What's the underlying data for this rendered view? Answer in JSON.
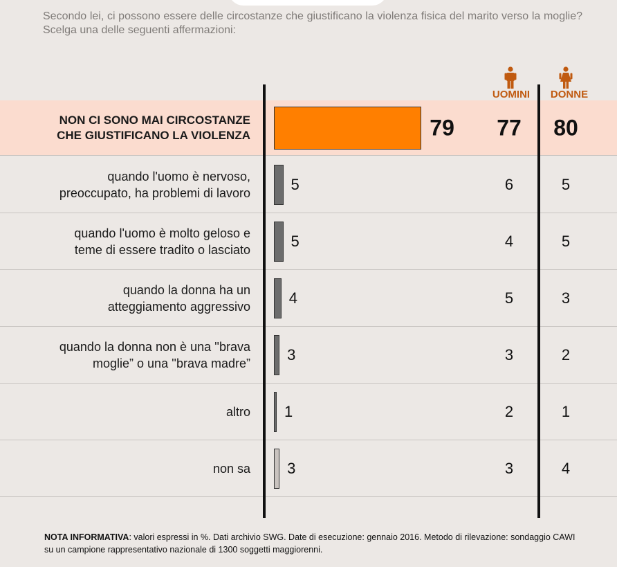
{
  "question": "Secondo lei, ci possono essere delle circostanze che giustificano la violenza fisica del marito verso la moglie? Scelga una delle seguenti affermazioni:",
  "columns": {
    "men": "UOMINI",
    "women": "DONNE"
  },
  "icons": {
    "men": "man-icon",
    "women": "woman-icon"
  },
  "colors": {
    "highlight_bar": "#ff7f00",
    "bar": "#6c6c6c",
    "bar_light": "#c9c3bf",
    "highlight_row": "#fbdccf",
    "header_text": "#c05a10"
  },
  "chart_data": {
    "type": "bar",
    "orientation": "horizontal",
    "unit": "%",
    "categories": [
      "NON CI SONO MAI CIRCOSTANZE CHE GIUSTIFICANO LA VIOLENZA",
      "quando l'uomo è nervoso, preoccupato, ha problemi di lavoro",
      "quando l'uomo è molto geloso e teme di essere tradito o lasciato",
      "quando la donna ha un atteggiamento aggressivo",
      "quando la donna non è una ''brava moglie” o una ''brava madre”",
      "altro",
      "non sa"
    ],
    "series": [
      {
        "name": "",
        "values": [
          79,
          5,
          5,
          4,
          3,
          1,
          3
        ]
      },
      {
        "name": "UOMINI",
        "values": [
          77,
          6,
          4,
          5,
          3,
          2,
          3
        ]
      },
      {
        "name": "DONNE",
        "values": [
          80,
          5,
          5,
          3,
          2,
          1,
          4
        ]
      }
    ]
  },
  "rows": [
    {
      "label_lines": [
        "NON CI SONO MAI CIRCOSTANZE",
        "CHE GIUSTIFICANO LA VIOLENZA"
      ],
      "total": "79",
      "men": "77",
      "women": "80"
    },
    {
      "label_lines": [
        "quando l'uomo è nervoso,",
        "preoccupato, ha problemi di lavoro"
      ],
      "total": "5",
      "men": "6",
      "women": "5"
    },
    {
      "label_lines": [
        "quando l'uomo è molto geloso e",
        "teme di essere tradito o lasciato"
      ],
      "total": "5",
      "men": "4",
      "women": "5"
    },
    {
      "label_lines": [
        "quando la donna ha un",
        "atteggiamento aggressivo"
      ],
      "total": "4",
      "men": "5",
      "women": "3"
    },
    {
      "label_lines": [
        "quando la donna non è una ''brava",
        "moglie” o una ''brava madre”"
      ],
      "total": "3",
      "men": "3",
      "women": "2"
    },
    {
      "label_lines": [
        "altro"
      ],
      "total": "1",
      "men": "2",
      "women": "1"
    },
    {
      "label_lines": [
        "non sa"
      ],
      "total": "3",
      "men": "3",
      "women": "4"
    }
  ],
  "note": {
    "title": "NOTA INFORMATIVA",
    "text": ": valori espressi in %. Dati archivio SWG. Date di esecuzione: gennaio 2016. Metodo di rilevazione: sondaggio CAWI su un campione rappresentativo nazionale di 1300 soggetti maggiorenni."
  }
}
